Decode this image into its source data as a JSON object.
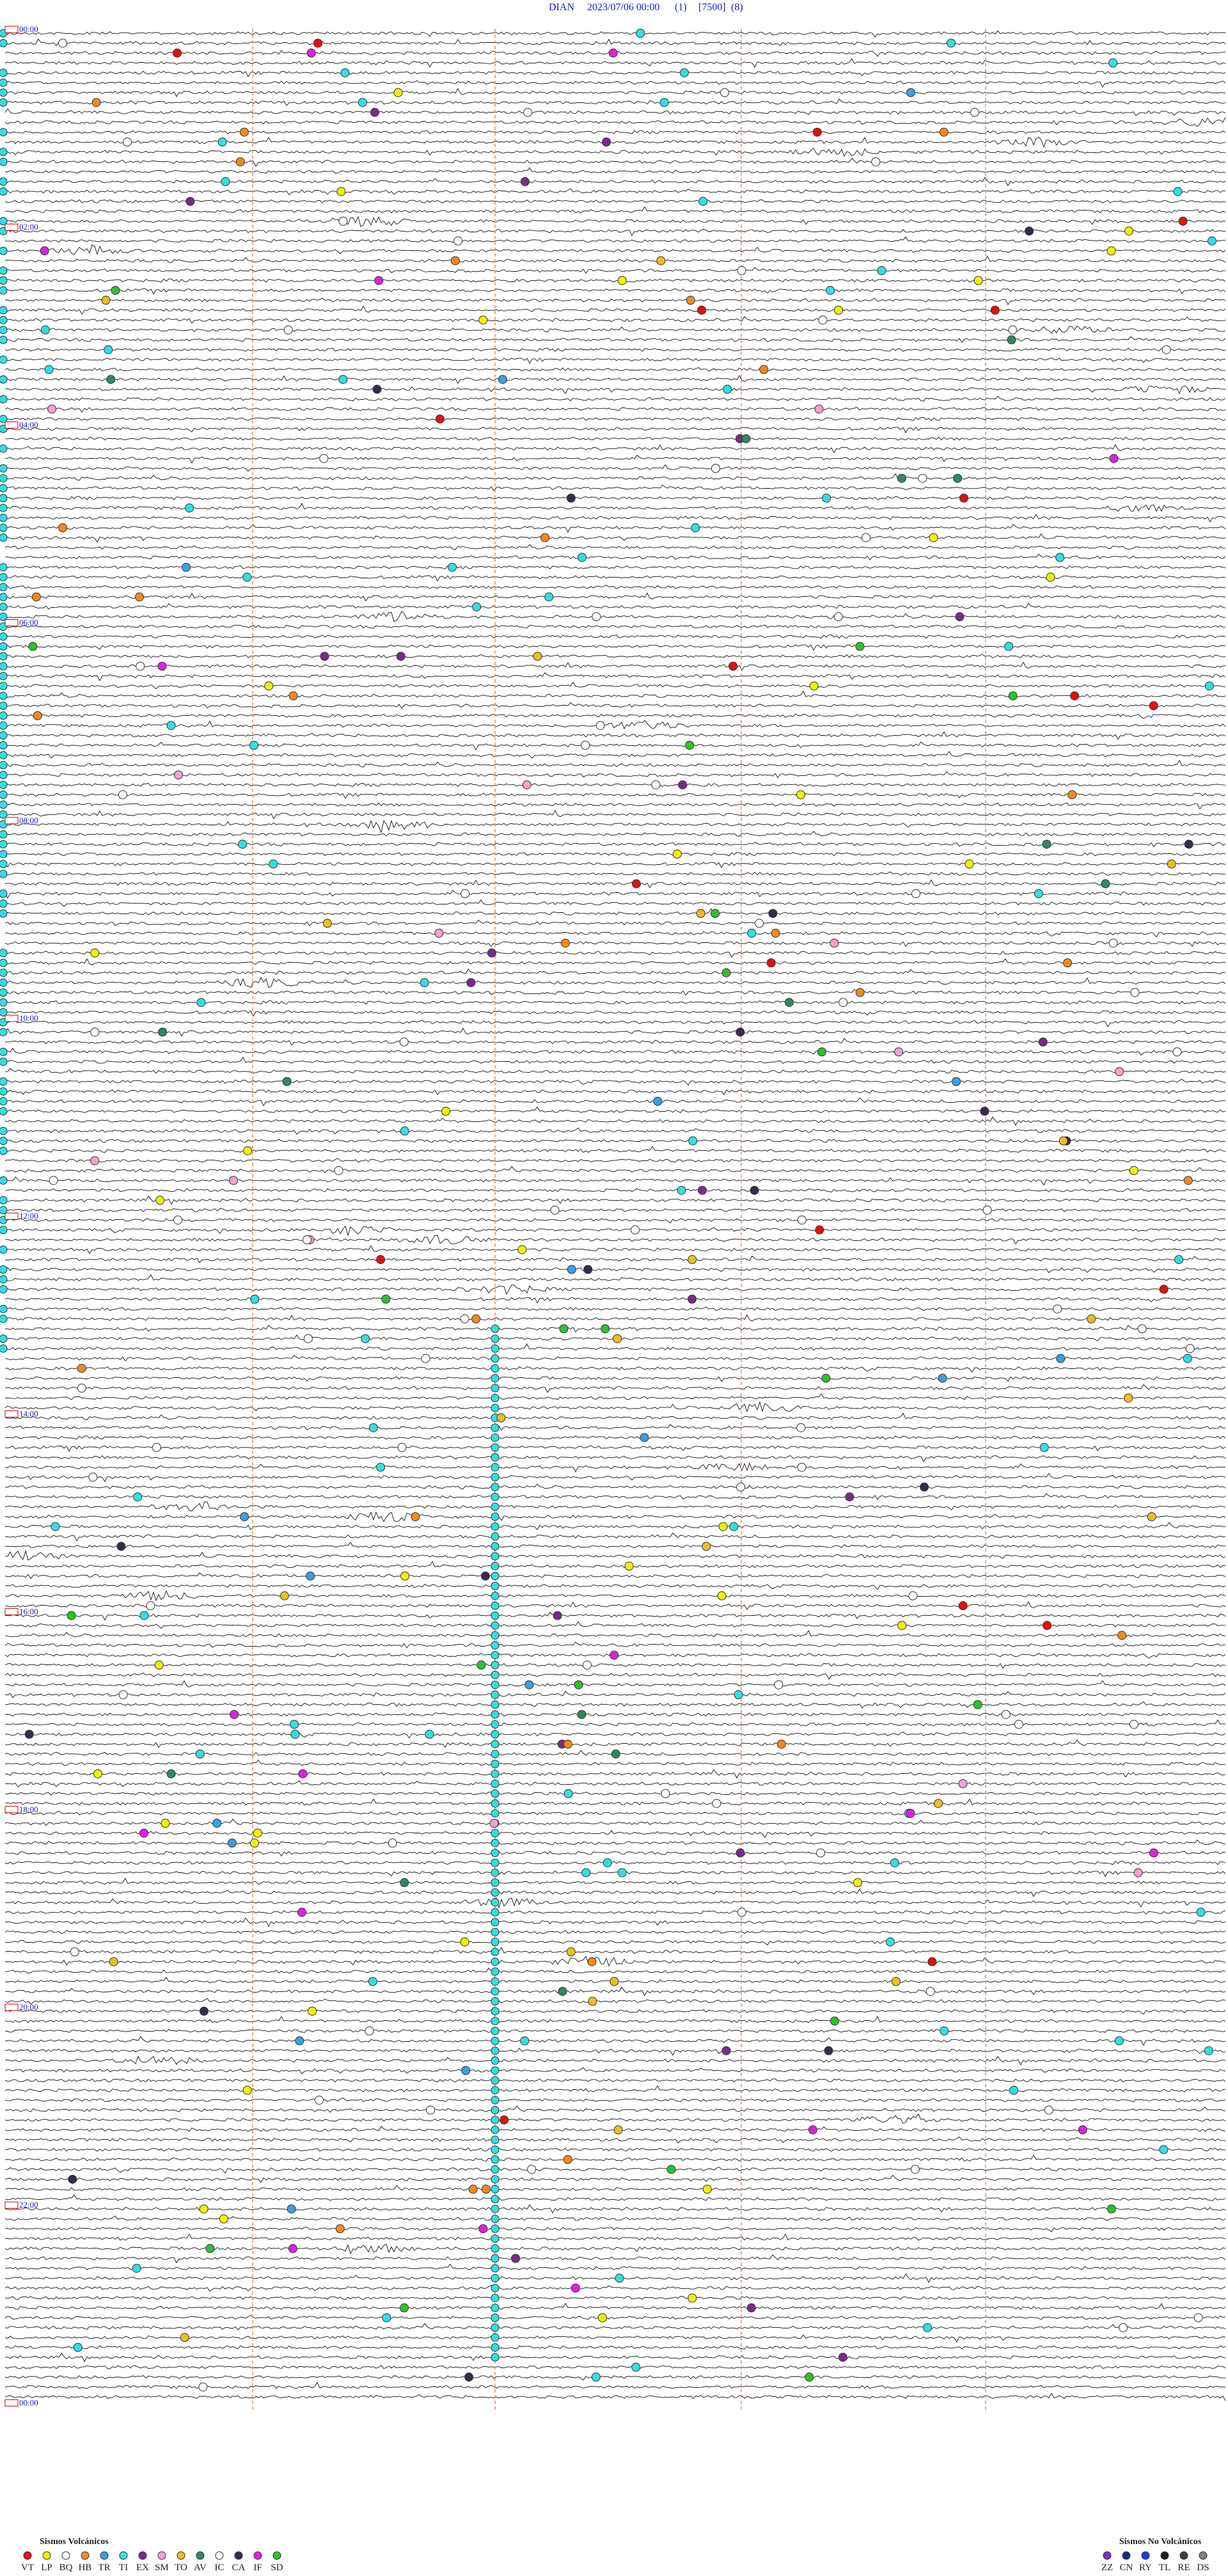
{
  "header": {
    "station": "DIAN",
    "datetime": "2023/07/06 00:00",
    "channel": "(1)",
    "scale": "[7500]",
    "filter": "(8)"
  },
  "time_labels": [
    "00:00",
    "02:00",
    "04:00",
    "06:00",
    "08:00",
    "10:00",
    "12:00",
    "14:00",
    "16:00",
    "18:00",
    "20:00",
    "22:00",
    "00:00"
  ],
  "legend_volcanic": {
    "title": "Sismos Volcánicos",
    "items": [
      {
        "code": "VT",
        "color": "#e31010"
      },
      {
        "code": "LP",
        "color": "#f2f200"
      },
      {
        "code": "BQ",
        "color": "#ffffff"
      },
      {
        "code": "HB",
        "color": "#f08a1c"
      },
      {
        "code": "TR",
        "color": "#3aa0e0"
      },
      {
        "code": "TI",
        "color": "#30e0e0"
      },
      {
        "code": "EX",
        "color": "#7a2a8a"
      },
      {
        "code": "SM",
        "color": "#f4a0d0"
      },
      {
        "code": "TO",
        "color": "#e8c020"
      },
      {
        "code": "AV",
        "color": "#2e8a5e"
      },
      {
        "code": "IC",
        "color": "#ffffff"
      },
      {
        "code": "CA",
        "color": "#3a2a4a"
      },
      {
        "code": "IF",
        "color": "#e020e0"
      },
      {
        "code": "SD",
        "color": "#30c030"
      }
    ]
  },
  "legend_nonvolcanic": {
    "title": "Sismos No Volcánicos",
    "items": [
      {
        "code": "ZZ",
        "color": "#8a2ac0"
      },
      {
        "code": "CN",
        "color": "#1a2a8a"
      },
      {
        "code": "RY",
        "color": "#1a40e0"
      },
      {
        "code": "TL",
        "color": "#202020"
      },
      {
        "code": "RE",
        "color": "#4a3a3a"
      },
      {
        "code": "DS",
        "color": "#808080"
      }
    ]
  }
}
